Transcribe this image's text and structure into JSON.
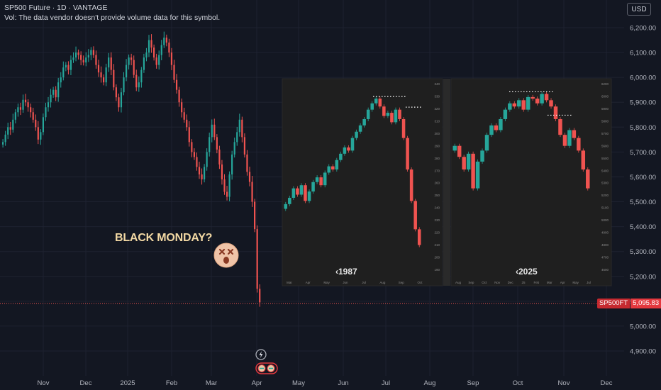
{
  "header": {
    "symbol_line": "SP500 Future · 1D · VANTAGE",
    "volume_note": "Vol: The data vendor doesn't provide volume data for this symbol."
  },
  "currency_button": "USD",
  "annotation": "BLACK MONDAY?",
  "emoji_icon": "dizzy-face-emoji",
  "last_price": {
    "symbol": "SP500FT",
    "value": "5,095.83"
  },
  "colors": {
    "background": "#131722",
    "up": "#26a69a",
    "down": "#ef5350",
    "grid": "#1e2230",
    "price_line": "#ef5350"
  },
  "insets": [
    {
      "label": "‹1987",
      "months": [
        "Mar",
        "Apr",
        "May",
        "Jun",
        "Jul",
        "Aug",
        "Sep",
        "Oct"
      ],
      "ticks": [
        "340",
        "330",
        "320",
        "310",
        "300",
        "290",
        "280",
        "270",
        "260",
        "250",
        "240",
        "230",
        "220",
        "210",
        "200",
        "190"
      ]
    },
    {
      "label": "‹2025",
      "months": [
        "Aug",
        "Sep",
        "Oct",
        "Nov",
        "Dec",
        "25",
        "Feb",
        "Mar",
        "Apr",
        "May",
        "Jul"
      ],
      "ticks": [
        "6200",
        "6000",
        "5900",
        "5800",
        "5700",
        "5600",
        "5500",
        "5400",
        "5300",
        "5200",
        "5100",
        "5000",
        "4900",
        "4800",
        "4700",
        "4600"
      ]
    }
  ],
  "chart_data": {
    "type": "candlestick",
    "title": "SP500 Future · 1D · VANTAGE",
    "x_ticks": [
      "Nov",
      "Dec",
      "2025",
      "Feb",
      "Mar",
      "Apr",
      "May",
      "Jun",
      "Jul",
      "Aug",
      "Sep",
      "Oct",
      "Nov",
      "Dec"
    ],
    "y_ticks": [
      "6,200.00",
      "6,100.00",
      "6,000.00",
      "5,900.00",
      "5,800.00",
      "5,700.00",
      "5,600.00",
      "5,500.00",
      "5,400.00",
      "5,300.00",
      "5,200.00",
      "5,100.00",
      "5,000.00",
      "4,900.00"
    ],
    "ylim": [
      4860,
      6230
    ],
    "series_close": [
      5740,
      5770,
      5800,
      5790,
      5830,
      5860,
      5880,
      5870,
      5910,
      5900,
      5880,
      5860,
      5830,
      5800,
      5750,
      5780,
      5840,
      5880,
      5900,
      5930,
      5950,
      5920,
      5980,
      6000,
      6040,
      6050,
      6030,
      6070,
      6080,
      6100,
      6090,
      6070,
      6060,
      6080,
      6090,
      6110,
      6090,
      6050,
      6020,
      6000,
      5980,
      6040,
      6080,
      6030,
      5960,
      5920,
      5880,
      5940,
      6000,
      6050,
      6080,
      6070,
      6010,
      5960,
      5980,
      6030,
      6080,
      6100,
      6150,
      6120,
      6080,
      6050,
      6090,
      6130,
      6160,
      6140,
      6100,
      6050,
      5990,
      5950,
      5900,
      5860,
      5830,
      5800,
      5740,
      5700,
      5680,
      5640,
      5610,
      5590,
      5640,
      5700,
      5760,
      5810,
      5760,
      5710,
      5650,
      5590,
      5540,
      5520,
      5610,
      5690,
      5740,
      5780,
      5830,
      5760,
      5690,
      5620,
      5580,
      5500,
      5390,
      5150,
      5095.83
    ],
    "last_value": 5095.83,
    "annotations": [
      "BLACK MONDAY?",
      "1987",
      "2025"
    ]
  }
}
